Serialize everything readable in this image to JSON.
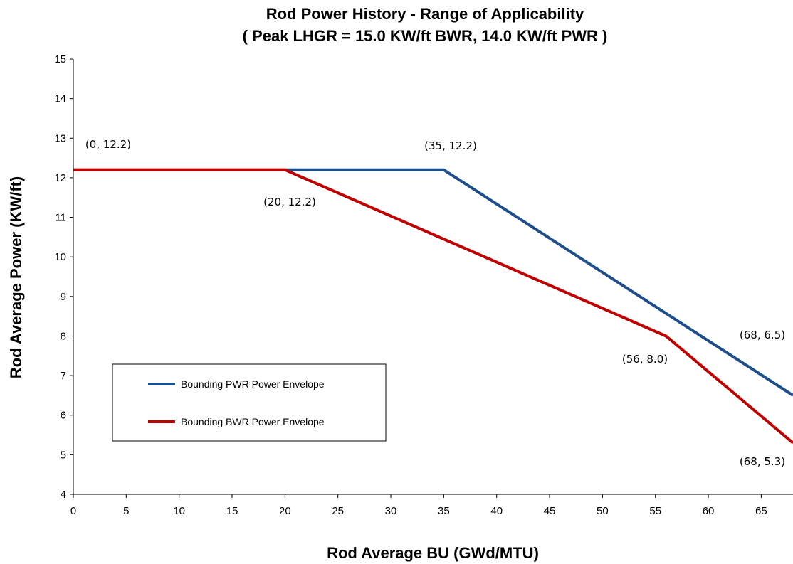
{
  "chart_data": {
    "type": "line",
    "title": "Rod Power History - Range of Applicability",
    "subtitle": "( Peak LHGR = 15.0 KW/ft BWR, 14.0 KW/ft PWR )",
    "xlabel": "Rod Average BU (GWd/MTU)",
    "ylabel": "Rod Average Power (KW/ft)",
    "xlim": [
      0,
      68
    ],
    "ylim": [
      4,
      15
    ],
    "x_ticks": [
      "0",
      "5",
      "10",
      "15",
      "20",
      "25",
      "30",
      "35",
      "40",
      "45",
      "50",
      "55",
      "60",
      "65"
    ],
    "y_ticks": [
      "4",
      "5",
      "6",
      "7",
      "8",
      "9",
      "10",
      "11",
      "12",
      "13",
      "14",
      "15"
    ],
    "grid": false,
    "legend_position": "lower-left",
    "series": [
      {
        "name": "Bounding PWR Power Envelope",
        "color": "#1F4E8C",
        "x": [
          0,
          35,
          68
        ],
        "y": [
          12.2,
          12.2,
          6.5
        ]
      },
      {
        "name": "Bounding BWR Power Envelope",
        "color": "#C00000",
        "x": [
          0,
          20,
          56,
          68
        ],
        "y": [
          12.2,
          12.2,
          8.0,
          5.3
        ]
      }
    ],
    "annotations": [
      "(0, 12.2)",
      "(35, 12.2)",
      "(20, 12.2)",
      "(68, 6.5)",
      "(56, 8.0)",
      "(68, 5.3)"
    ]
  }
}
